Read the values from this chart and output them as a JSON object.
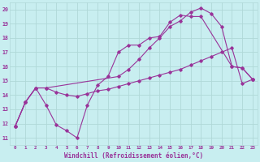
{
  "background_color": "#c8eef0",
  "grid_color": "#b0d8d8",
  "line_color": "#993399",
  "xlabel": "Windchill (Refroidissement éolien,°C)",
  "xlim": [
    -0.5,
    23.5
  ],
  "ylim": [
    10.5,
    20.5
  ],
  "yticks": [
    11,
    12,
    13,
    14,
    15,
    16,
    17,
    18,
    19,
    20
  ],
  "xticks": [
    0,
    1,
    2,
    3,
    4,
    5,
    6,
    7,
    8,
    9,
    10,
    11,
    12,
    13,
    14,
    15,
    16,
    17,
    18,
    19,
    20,
    21,
    22,
    23
  ],
  "line1_x": [
    0,
    1,
    2,
    3,
    4,
    5,
    6,
    7,
    8,
    9,
    10,
    11,
    12,
    13,
    14,
    15,
    16,
    17,
    18,
    21,
    22,
    23
  ],
  "line1_y": [
    11.8,
    13.5,
    14.5,
    13.3,
    11.9,
    11.5,
    11.0,
    13.3,
    14.7,
    15.3,
    17.0,
    17.5,
    17.5,
    18.0,
    18.1,
    19.1,
    19.6,
    19.5,
    19.5,
    16.0,
    15.9,
    15.1
  ],
  "line2_x": [
    0,
    1,
    2,
    3,
    4,
    5,
    6,
    7,
    8,
    9,
    10,
    11,
    12,
    13,
    14,
    15,
    16,
    17,
    18,
    19,
    20,
    21,
    22,
    23
  ],
  "line2_y": [
    11.8,
    13.5,
    14.5,
    14.5,
    14.2,
    14.0,
    13.9,
    14.1,
    14.3,
    14.4,
    14.6,
    14.8,
    15.0,
    15.2,
    15.4,
    15.6,
    15.8,
    16.1,
    16.4,
    16.7,
    17.0,
    17.3,
    14.8,
    15.1
  ],
  "line3_x": [
    0,
    1,
    2,
    3,
    10,
    11,
    12,
    13,
    14,
    15,
    16,
    17,
    18,
    19,
    20,
    21,
    22,
    23
  ],
  "line3_y": [
    11.8,
    13.5,
    14.5,
    14.5,
    15.3,
    15.8,
    16.5,
    17.3,
    18.0,
    18.8,
    19.2,
    19.8,
    20.1,
    19.7,
    18.8,
    16.0,
    15.9,
    15.1
  ]
}
